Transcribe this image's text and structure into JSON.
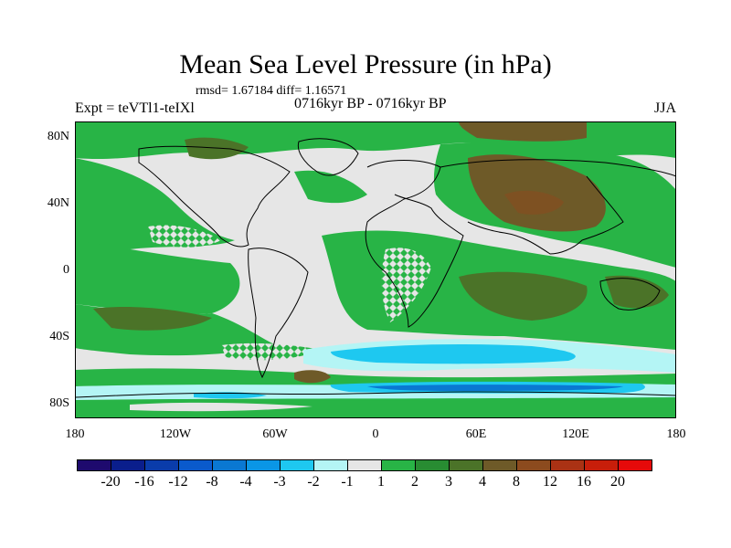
{
  "title": "Mean Sea Level Pressure (in hPa)",
  "stats": "rmsd= 1.67184 diff= 1.16571",
  "left_label": "Expt = teVTl1-teIXl",
  "center_label": "0716kyr BP - 0716kyr BP",
  "right_label": "JJA",
  "lat_labels": [
    "80N",
    "40N",
    "0",
    "40S",
    "80S"
  ],
  "lon_labels": [
    "180",
    "120W",
    "60W",
    "0",
    "60E",
    "120E",
    "180"
  ],
  "colorbar": {
    "colors": [
      "#1e0a6e",
      "#0a1e8c",
      "#0a3caa",
      "#0a5acc",
      "#0a78d2",
      "#0a96e6",
      "#1ec8f0",
      "#b4f5f5",
      "#e6e6e6",
      "#28b446",
      "#288c32",
      "#4b7328",
      "#6e5a28",
      "#8c4b1e",
      "#aa3214",
      "#c81e0a",
      "#e60a0a"
    ],
    "labels": [
      "-20",
      "-16",
      "-12",
      "-8",
      "-4",
      "-3",
      "-2",
      "-1",
      "1",
      "2",
      "3",
      "4",
      "8",
      "12",
      "16",
      "20"
    ]
  },
  "map_colors": {
    "neutral": "#e6e6e6",
    "green": "#28b446",
    "dark_green": "#4b7328",
    "brown": "#6e5a28",
    "light_cyan": "#b4f5f5",
    "cyan": "#1ec8f0",
    "blue": "#0a78d2",
    "coast": "#000000"
  }
}
